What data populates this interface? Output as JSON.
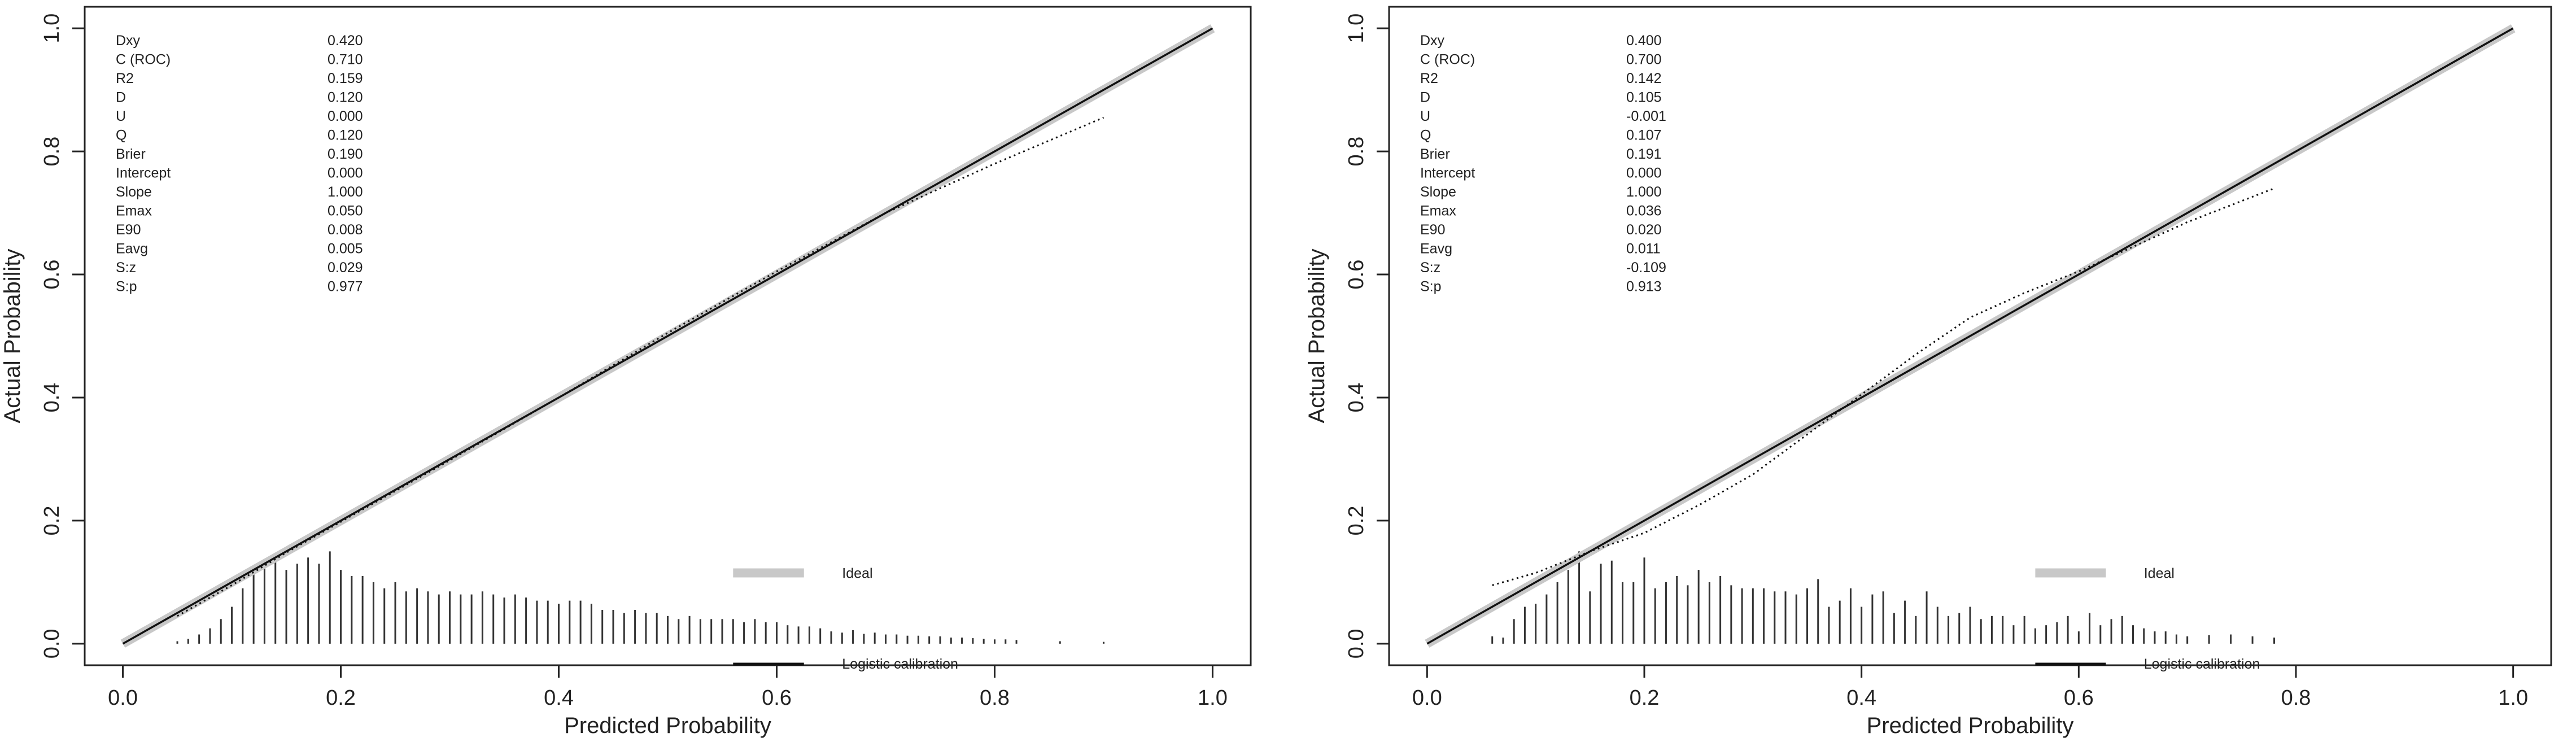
{
  "colors": {
    "ideal": "#c8c8c8",
    "curve": "#111111",
    "frame": "#222222",
    "background": "#ffffff"
  },
  "chart_data": [
    {
      "type": "line",
      "xlabel": "Predicted Probability",
      "ylabel": "Actual Probability",
      "xlim": [
        0,
        1
      ],
      "ylim": [
        0,
        1
      ],
      "x_ticks": [
        "0.0",
        "0.2",
        "0.4",
        "0.6",
        "0.8",
        "1.0"
      ],
      "y_ticks": [
        "0.0",
        "0.2",
        "0.4",
        "0.6",
        "0.8",
        "1.0"
      ],
      "grid": false,
      "legend_position": "bottom-right",
      "legend": [
        {
          "label": "Ideal"
        },
        {
          "label": "Logistic calibration"
        }
      ],
      "stats": [
        {
          "name": "Dxy",
          "value": "0.420"
        },
        {
          "name": "C (ROC)",
          "value": "0.710"
        },
        {
          "name": "R2",
          "value": "0.159"
        },
        {
          "name": "D",
          "value": "0.120"
        },
        {
          "name": "U",
          "value": "0.000"
        },
        {
          "name": "Q",
          "value": "0.120"
        },
        {
          "name": "Brier",
          "value": "0.190"
        },
        {
          "name": "Intercept",
          "value": "0.000"
        },
        {
          "name": "Slope",
          "value": "1.000"
        },
        {
          "name": "Emax",
          "value": "0.050"
        },
        {
          "name": "E90",
          "value": "0.008"
        },
        {
          "name": "Eavg",
          "value": "0.005"
        },
        {
          "name": "S:z",
          "value": "0.029"
        },
        {
          "name": "S:p",
          "value": "0.977"
        }
      ],
      "ideal": {
        "x": [
          0,
          1
        ],
        "y": [
          0,
          1
        ]
      },
      "logistic": {
        "x": [
          0,
          1
        ],
        "y": [
          0,
          1
        ]
      },
      "nonparametric": {
        "x": [
          0.05,
          0.1,
          0.15,
          0.2,
          0.3,
          0.4,
          0.5,
          0.6,
          0.7,
          0.8,
          0.9
        ],
        "y": [
          0.045,
          0.095,
          0.148,
          0.198,
          0.298,
          0.4,
          0.505,
          0.605,
          0.7,
          0.78,
          0.855
        ]
      },
      "histogram": {
        "x": [
          0.05,
          0.06,
          0.07,
          0.08,
          0.09,
          0.1,
          0.11,
          0.12,
          0.13,
          0.14,
          0.15,
          0.16,
          0.17,
          0.18,
          0.19,
          0.2,
          0.21,
          0.22,
          0.23,
          0.24,
          0.25,
          0.26,
          0.27,
          0.28,
          0.29,
          0.3,
          0.31,
          0.32,
          0.33,
          0.34,
          0.35,
          0.36,
          0.37,
          0.38,
          0.39,
          0.4,
          0.41,
          0.42,
          0.43,
          0.44,
          0.45,
          0.46,
          0.47,
          0.48,
          0.49,
          0.5,
          0.51,
          0.52,
          0.53,
          0.54,
          0.55,
          0.56,
          0.57,
          0.58,
          0.59,
          0.6,
          0.61,
          0.62,
          0.63,
          0.64,
          0.65,
          0.66,
          0.67,
          0.68,
          0.69,
          0.7,
          0.71,
          0.72,
          0.73,
          0.74,
          0.75,
          0.76,
          0.77,
          0.78,
          0.79,
          0.8,
          0.81,
          0.82,
          0.86,
          0.9
        ],
        "height": [
          0.004,
          0.008,
          0.015,
          0.025,
          0.04,
          0.06,
          0.09,
          0.12,
          0.13,
          0.14,
          0.12,
          0.13,
          0.14,
          0.13,
          0.15,
          0.12,
          0.11,
          0.11,
          0.1,
          0.09,
          0.1,
          0.085,
          0.09,
          0.085,
          0.08,
          0.085,
          0.08,
          0.08,
          0.085,
          0.08,
          0.075,
          0.08,
          0.075,
          0.07,
          0.07,
          0.065,
          0.07,
          0.07,
          0.065,
          0.055,
          0.055,
          0.05,
          0.055,
          0.05,
          0.05,
          0.045,
          0.04,
          0.045,
          0.04,
          0.04,
          0.04,
          0.04,
          0.035,
          0.04,
          0.035,
          0.035,
          0.03,
          0.028,
          0.028,
          0.025,
          0.02,
          0.018,
          0.022,
          0.016,
          0.018,
          0.015,
          0.015,
          0.013,
          0.013,
          0.012,
          0.012,
          0.01,
          0.01,
          0.009,
          0.008,
          0.007,
          0.007,
          0.006,
          0.004,
          0.003
        ]
      }
    },
    {
      "type": "line",
      "xlabel": "Predicted Probability",
      "ylabel": "Actual Probability",
      "xlim": [
        0,
        1
      ],
      "ylim": [
        0,
        1
      ],
      "x_ticks": [
        "0.0",
        "0.2",
        "0.4",
        "0.6",
        "0.8",
        "1.0"
      ],
      "y_ticks": [
        "0.0",
        "0.2",
        "0.4",
        "0.6",
        "0.8",
        "1.0"
      ],
      "grid": false,
      "legend_position": "bottom-right",
      "legend": [
        {
          "label": "Ideal"
        },
        {
          "label": "Logistic calibration"
        }
      ],
      "stats": [
        {
          "name": "Dxy",
          "value": "0.400"
        },
        {
          "name": "C (ROC)",
          "value": "0.700"
        },
        {
          "name": "R2",
          "value": "0.142"
        },
        {
          "name": "D",
          "value": "0.105"
        },
        {
          "name": "U",
          "value": "-0.001"
        },
        {
          "name": "Q",
          "value": "0.107"
        },
        {
          "name": "Brier",
          "value": "0.191"
        },
        {
          "name": "Intercept",
          "value": "0.000"
        },
        {
          "name": "Slope",
          "value": "1.000"
        },
        {
          "name": "Emax",
          "value": "0.036"
        },
        {
          "name": "E90",
          "value": "0.020"
        },
        {
          "name": "Eavg",
          "value": "0.011"
        },
        {
          "name": "S:z",
          "value": "-0.109"
        },
        {
          "name": "S:p",
          "value": "0.913"
        }
      ],
      "ideal": {
        "x": [
          0,
          1
        ],
        "y": [
          0,
          1
        ]
      },
      "logistic": {
        "x": [
          0,
          1
        ],
        "y": [
          0,
          1
        ]
      },
      "nonparametric": {
        "x": [
          0.06,
          0.1,
          0.15,
          0.2,
          0.25,
          0.3,
          0.35,
          0.4,
          0.45,
          0.5,
          0.55,
          0.6,
          0.65,
          0.7,
          0.78
        ],
        "y": [
          0.095,
          0.115,
          0.15,
          0.18,
          0.225,
          0.275,
          0.34,
          0.405,
          0.47,
          0.53,
          0.57,
          0.605,
          0.645,
          0.685,
          0.74
        ]
      },
      "histogram": {
        "x": [
          0.06,
          0.07,
          0.08,
          0.09,
          0.1,
          0.11,
          0.12,
          0.13,
          0.14,
          0.15,
          0.16,
          0.17,
          0.18,
          0.19,
          0.2,
          0.21,
          0.22,
          0.23,
          0.24,
          0.25,
          0.26,
          0.27,
          0.28,
          0.29,
          0.3,
          0.31,
          0.32,
          0.33,
          0.34,
          0.35,
          0.36,
          0.37,
          0.38,
          0.39,
          0.4,
          0.41,
          0.42,
          0.43,
          0.44,
          0.45,
          0.46,
          0.47,
          0.48,
          0.49,
          0.5,
          0.51,
          0.52,
          0.53,
          0.54,
          0.55,
          0.56,
          0.57,
          0.58,
          0.59,
          0.6,
          0.61,
          0.62,
          0.63,
          0.64,
          0.65,
          0.66,
          0.67,
          0.68,
          0.69,
          0.7,
          0.72,
          0.74,
          0.76,
          0.78
        ],
        "height": [
          0.012,
          0.01,
          0.04,
          0.06,
          0.065,
          0.08,
          0.1,
          0.12,
          0.15,
          0.085,
          0.13,
          0.135,
          0.1,
          0.1,
          0.14,
          0.09,
          0.1,
          0.11,
          0.095,
          0.12,
          0.1,
          0.11,
          0.095,
          0.09,
          0.09,
          0.09,
          0.085,
          0.085,
          0.08,
          0.09,
          0.105,
          0.06,
          0.07,
          0.09,
          0.06,
          0.08,
          0.085,
          0.05,
          0.07,
          0.045,
          0.085,
          0.06,
          0.045,
          0.05,
          0.06,
          0.04,
          0.045,
          0.045,
          0.03,
          0.045,
          0.025,
          0.03,
          0.035,
          0.045,
          0.02,
          0.05,
          0.03,
          0.04,
          0.045,
          0.03,
          0.025,
          0.02,
          0.02,
          0.015,
          0.012,
          0.014,
          0.015,
          0.012,
          0.01
        ]
      }
    }
  ]
}
